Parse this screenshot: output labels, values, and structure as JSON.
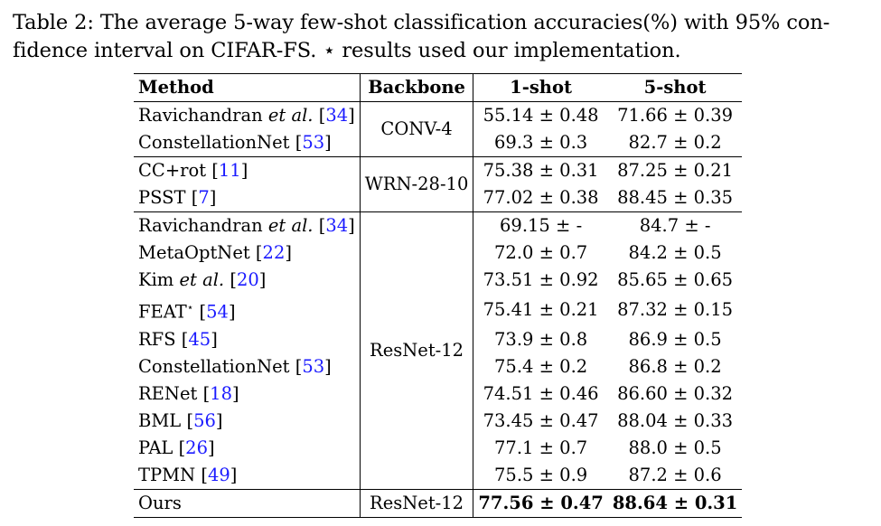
{
  "caption": {
    "line1": "Table 2: The average 5-way few-shot classification accuracies(%) with 95% con-",
    "line2": "fidence interval on CIFAR-FS. ⋆ results used our implementation."
  },
  "table": {
    "headers": {
      "method": "Method",
      "backbone": "Backbone",
      "one_shot": "1-shot",
      "five_shot": "5-shot"
    },
    "groups": [
      {
        "backbone": "CONV-4",
        "rows": [
          {
            "name": "Ravichandran ",
            "name_italic": "et al.",
            "ref": "34",
            "one": "55.14 ± 0.48",
            "five": "71.66 ± 0.39"
          },
          {
            "name": "ConstellationNet ",
            "ref": "53",
            "one": "69.3 ± 0.3",
            "five": "82.7 ± 0.2"
          }
        ]
      },
      {
        "backbone": "WRN-28-10",
        "rows": [
          {
            "name": "CC+rot ",
            "ref": "11",
            "one": "75.38 ± 0.31",
            "five": "87.25 ± 0.21"
          },
          {
            "name": "PSST ",
            "ref": "7",
            "one": "77.02 ± 0.38",
            "five": "88.45 ± 0.35"
          }
        ]
      },
      {
        "backbone": "ResNet-12",
        "rows": [
          {
            "name": "Ravichandran ",
            "name_italic": "et al.",
            "ref": "34",
            "one": "69.15 ± -",
            "five": "84.7 ± -"
          },
          {
            "name": "MetaOptNet ",
            "ref": "22",
            "one": "72.0 ± 0.7",
            "five": "84.2 ± 0.5"
          },
          {
            "name": "Kim ",
            "name_italic": "et al.",
            "ref": "20",
            "one": "73.51 ± 0.92",
            "five": "85.65 ± 0.65"
          },
          {
            "name": "FEAT",
            "star": "⋆",
            "ref": "54",
            "one": "75.41 ± 0.21",
            "five": "87.32 ± 0.15"
          },
          {
            "name": "RFS ",
            "ref": "45",
            "one": "73.9 ± 0.8",
            "five": "86.9 ± 0.5"
          },
          {
            "name": "ConstellationNet ",
            "ref": "53",
            "one": "75.4 ± 0.2",
            "five": "86.8 ± 0.2"
          },
          {
            "name": "RENet ",
            "ref": "18",
            "one": "74.51 ± 0.46",
            "five": "86.60 ± 0.32"
          },
          {
            "name": "BML ",
            "ref": "56",
            "one": "73.45 ± 0.47",
            "five": "88.04 ± 0.33"
          },
          {
            "name": "PAL ",
            "ref": "26",
            "one": "77.1 ± 0.7",
            "five": "88.0 ± 0.5"
          },
          {
            "name": "TPMN ",
            "ref": "49",
            "one": "75.5 ± 0.9",
            "five": "87.2 ± 0.6"
          }
        ]
      },
      {
        "backbone": "ResNet-12",
        "bold_values": true,
        "rows": [
          {
            "name": "Ours",
            "one": "77.56 ± 0.47",
            "five": "88.64 ± 0.31"
          }
        ]
      }
    ]
  },
  "colors": {
    "citation": "#1a1aff"
  }
}
